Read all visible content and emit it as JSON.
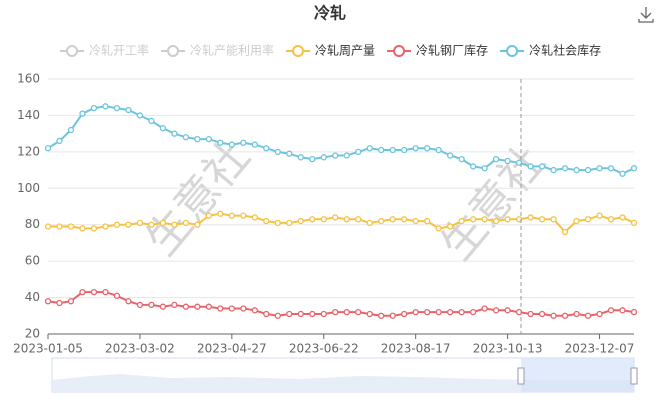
{
  "chart_data": {
    "type": "line",
    "title": "冷轧",
    "watermark": "生意社",
    "legend_hidden": [
      {
        "name": "冷轧开工率",
        "color": "#cccccc"
      },
      {
        "name": "冷轧产能利用率",
        "color": "#cccccc"
      }
    ],
    "categories": [
      "2023-01-05",
      null,
      null,
      null,
      null,
      null,
      null,
      null,
      "2023-03-02",
      null,
      null,
      null,
      null,
      null,
      null,
      null,
      "2023-04-27",
      null,
      null,
      null,
      null,
      null,
      null,
      null,
      "2023-06-22",
      null,
      null,
      null,
      null,
      null,
      null,
      null,
      "2023-08-17",
      null,
      null,
      null,
      null,
      null,
      null,
      null,
      "2023-10-13",
      null,
      null,
      null,
      null,
      null,
      null,
      null,
      "2023-12-07",
      null,
      null,
      null
    ],
    "series": [
      {
        "name": "冷轧周产量",
        "color": "#f5c242",
        "values": [
          79,
          79,
          79,
          78,
          78,
          79,
          80,
          80,
          81,
          80,
          81,
          80,
          81,
          80,
          85,
          86,
          85,
          85,
          84,
          82,
          81,
          81,
          82,
          83,
          83,
          84,
          83,
          83,
          81,
          82,
          83,
          83,
          82,
          82,
          78,
          79,
          82,
          83,
          83,
          82,
          83,
          83,
          84,
          83,
          83,
          76,
          82,
          83,
          85,
          83,
          84,
          81
        ]
      },
      {
        "name": "冷轧钢厂库存",
        "color": "#e8636a",
        "values": [
          38,
          37,
          38,
          43,
          43,
          43,
          41,
          38,
          36,
          36,
          35,
          36,
          35,
          35,
          35,
          34,
          34,
          34,
          33,
          31,
          30,
          31,
          31,
          31,
          31,
          32,
          32,
          32,
          31,
          30,
          30,
          31,
          32,
          32,
          32,
          32,
          32,
          32,
          34,
          33,
          33,
          32,
          31,
          31,
          30,
          30,
          31,
          30,
          31,
          33,
          33,
          32
        ]
      },
      {
        "name": "冷轧社会库存",
        "color": "#6cc5dc",
        "values": [
          122,
          126,
          132,
          141,
          144,
          145,
          144,
          143,
          140,
          137,
          133,
          130,
          128,
          127,
          127,
          125,
          124,
          125,
          124,
          122,
          120,
          119,
          117,
          116,
          117,
          118,
          118,
          120,
          122,
          121,
          121,
          121,
          122,
          122,
          121,
          118,
          116,
          112,
          111,
          116,
          115,
          114,
          112,
          112,
          110,
          111,
          110,
          110,
          111,
          111,
          108,
          111
        ]
      }
    ],
    "ylim": [
      20,
      160
    ],
    "yticks": [
      20,
      40,
      60,
      80,
      100,
      120,
      140,
      160
    ],
    "grid": true
  }
}
